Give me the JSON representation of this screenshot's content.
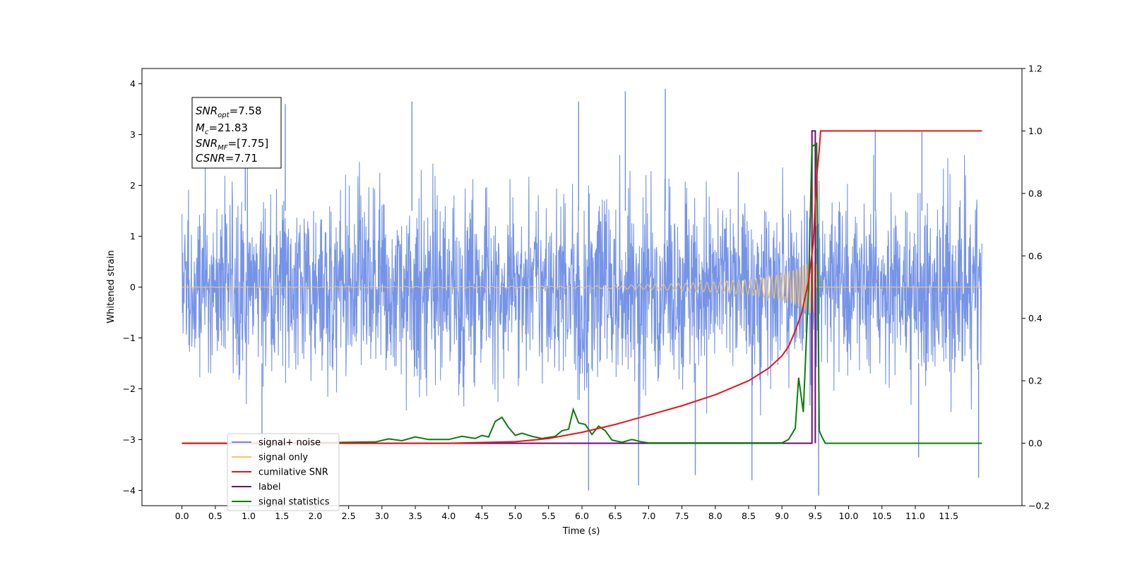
{
  "chart_data": {
    "type": "line",
    "xlabel": "Time (s)",
    "ylabel": "Whitened strain",
    "xlim": [
      -0.6,
      12.6
    ],
    "ylim": [
      -4.3,
      4.3
    ],
    "y2lim": [
      -0.2,
      1.2
    ],
    "x_ticks": [
      0.0,
      0.5,
      1.0,
      1.5,
      2.0,
      2.5,
      3.0,
      3.5,
      4.0,
      4.5,
      5.0,
      5.5,
      6.0,
      6.5,
      7.0,
      7.5,
      8.0,
      8.5,
      9.0,
      9.5,
      10.0,
      10.5,
      11.0,
      11.5
    ],
    "x_tick_labels": [
      "0.0",
      "0.5",
      "1.0",
      "1.5",
      "2.0",
      "2.5",
      "3.0",
      "3.5",
      "4.0",
      "4.5",
      "5.0",
      "5.5",
      "6.0",
      "6.5",
      "7.0",
      "7.5",
      "8.0",
      "8.5",
      "9.0",
      "9.5",
      "10.0",
      "10.5",
      "11.0",
      "11.5"
    ],
    "y_ticks": [
      4,
      3,
      2,
      1,
      0,
      -1,
      -2,
      -3,
      -4
    ],
    "y_tick_labels": [
      "4",
      "3",
      "2",
      "1",
      "0",
      "−1",
      "−2",
      "−3",
      "−4"
    ],
    "y2_ticks": [
      1.2,
      1.0,
      0.8,
      0.6,
      0.4,
      0.2,
      0.0,
      -0.2
    ],
    "y2_tick_labels": [
      "1.2",
      "1.0",
      "0.8",
      "0.6",
      "0.4",
      "0.2",
      "0.0",
      "−0.2"
    ],
    "annotation": {
      "lines": [
        {
          "base": "SNR",
          "sub": "opt",
          "rest": "=7.58"
        },
        {
          "base": "M",
          "sub": "c",
          "rest": "=21.83"
        },
        {
          "base": "SNR",
          "sub": "MF",
          "rest": "=[7.75]"
        },
        {
          "base": "CSNR",
          "sub": "",
          "rest": "=7.71"
        }
      ]
    },
    "legend": {
      "placement": "lower-left",
      "entries": [
        {
          "label": "signal+ noise",
          "color": "#6f8ee6"
        },
        {
          "label": "signal only",
          "color": "#f5c46b"
        },
        {
          "label": "cumilative SNR",
          "color": "#e8141b"
        },
        {
          "label": "label",
          "color": "#6b1070"
        },
        {
          "label": "signal statistics",
          "color": "#0a7d0a"
        }
      ]
    },
    "series": [
      {
        "name": "signal+ noise",
        "axis": "left",
        "color": "#6f8ee6",
        "x_range": [
          0,
          12
        ],
        "band_low": -2.0,
        "band_high": 2.0,
        "spikes": [
          {
            "x": 0.95,
            "y": 3.0
          },
          {
            "x": 1.55,
            "y": 3.6
          },
          {
            "x": 3.45,
            "y": 3.65
          },
          {
            "x": 5.95,
            "y": 3.65
          },
          {
            "x": 6.65,
            "y": 3.85
          },
          {
            "x": 7.25,
            "y": 3.9
          },
          {
            "x": 10.4,
            "y": 3.1
          },
          {
            "x": 11.1,
            "y": 3.05
          },
          {
            "x": 6.1,
            "y": -4.0
          },
          {
            "x": 6.85,
            "y": -3.9
          },
          {
            "x": 9.55,
            "y": -4.1
          },
          {
            "x": 8.55,
            "y": -3.8
          },
          {
            "x": 11.95,
            "y": -3.75
          },
          {
            "x": 7.7,
            "y": -3.7
          },
          {
            "x": 1.2,
            "y": -3.35
          },
          {
            "x": 11.05,
            "y": -3.35
          }
        ]
      },
      {
        "name": "signal only",
        "axis": "left",
        "color": "#f5c46b",
        "merger_time": 9.52,
        "envelope": [
          [
            0.0,
            0.0
          ],
          [
            6.0,
            0.02
          ],
          [
            7.0,
            0.05
          ],
          [
            8.0,
            0.1
          ],
          [
            8.5,
            0.15
          ],
          [
            9.0,
            0.25
          ],
          [
            9.2,
            0.35
          ],
          [
            9.4,
            0.5
          ],
          [
            9.5,
            0.55
          ]
        ]
      },
      {
        "name": "cumilative SNR",
        "axis": "right",
        "color": "#e8141b",
        "points": [
          [
            0,
            0
          ],
          [
            4.0,
            0.0
          ],
          [
            5.0,
            0.005
          ],
          [
            5.5,
            0.015
          ],
          [
            6.0,
            0.035
          ],
          [
            6.5,
            0.06
          ],
          [
            7.0,
            0.09
          ],
          [
            7.5,
            0.12
          ],
          [
            8.0,
            0.155
          ],
          [
            8.5,
            0.2
          ],
          [
            8.8,
            0.24
          ],
          [
            9.0,
            0.28
          ],
          [
            9.1,
            0.31
          ],
          [
            9.2,
            0.36
          ],
          [
            9.3,
            0.42
          ],
          [
            9.4,
            0.52
          ],
          [
            9.47,
            0.64
          ],
          [
            9.52,
            0.85
          ],
          [
            9.56,
            0.94
          ],
          [
            9.58,
            1.0
          ],
          [
            12.0,
            1.0
          ]
        ]
      },
      {
        "name": "label",
        "axis": "right",
        "color": "#6b1070",
        "points": [
          [
            0,
            0
          ],
          [
            9.45,
            0
          ],
          [
            9.45,
            1.0
          ],
          [
            9.5,
            1.0
          ],
          [
            9.5,
            0
          ]
        ]
      },
      {
        "name": "signal statistics",
        "axis": "right",
        "color": "#0a7d0a",
        "points": [
          [
            0,
            0
          ],
          [
            1.5,
            0
          ],
          [
            2.0,
            0.002
          ],
          [
            2.5,
            0.003
          ],
          [
            2.9,
            0.004
          ],
          [
            3.1,
            0.014
          ],
          [
            3.3,
            0.008
          ],
          [
            3.5,
            0.02
          ],
          [
            3.7,
            0.012
          ],
          [
            4.0,
            0.012
          ],
          [
            4.2,
            0.022
          ],
          [
            4.4,
            0.015
          ],
          [
            4.5,
            0.025
          ],
          [
            4.6,
            0.02
          ],
          [
            4.7,
            0.07
          ],
          [
            4.8,
            0.083
          ],
          [
            4.9,
            0.05
          ],
          [
            5.0,
            0.025
          ],
          [
            5.1,
            0.032
          ],
          [
            5.25,
            0.022
          ],
          [
            5.4,
            0.015
          ],
          [
            5.6,
            0.022
          ],
          [
            5.7,
            0.04
          ],
          [
            5.8,
            0.045
          ],
          [
            5.87,
            0.108
          ],
          [
            5.95,
            0.065
          ],
          [
            6.05,
            0.06
          ],
          [
            6.15,
            0.028
          ],
          [
            6.25,
            0.055
          ],
          [
            6.35,
            0.04
          ],
          [
            6.45,
            0.01
          ],
          [
            6.6,
            0.003
          ],
          [
            6.75,
            0.012
          ],
          [
            6.9,
            0.004
          ],
          [
            7.0,
            0.001
          ],
          [
            9.0,
            0.001
          ],
          [
            9.1,
            0.012
          ],
          [
            9.2,
            0.048
          ],
          [
            9.25,
            0.21
          ],
          [
            9.32,
            0.1
          ],
          [
            9.4,
            0.5
          ],
          [
            9.45,
            0.95
          ],
          [
            9.52,
            0.96
          ],
          [
            9.56,
            0.04
          ],
          [
            9.6,
            0.02
          ],
          [
            9.65,
            0
          ],
          [
            12.0,
            0
          ]
        ]
      }
    ]
  }
}
